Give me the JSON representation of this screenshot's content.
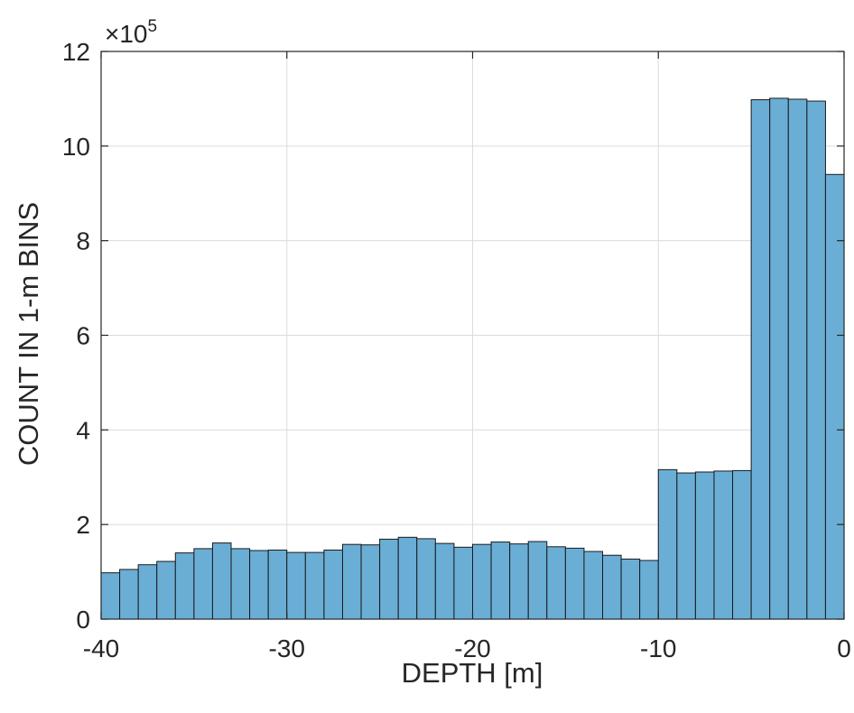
{
  "chart_data": {
    "type": "bar",
    "title": "",
    "xlabel": "DEPTH [m]",
    "ylabel": "COUNT IN 1-m BINS",
    "y_multiplier_label": "×10",
    "y_multiplier_exponent": "5",
    "xlim": [
      -40,
      0
    ],
    "ylim": [
      0,
      12
    ],
    "x_ticks": [
      -40,
      -30,
      -20,
      -10,
      0
    ],
    "y_ticks": [
      0,
      2,
      4,
      6,
      8,
      10,
      12
    ],
    "x_tick_labels": [
      "-40",
      "-30",
      "-20",
      "-10",
      "0"
    ],
    "y_tick_labels": [
      "0",
      "2",
      "4",
      "6",
      "8",
      "10",
      "12"
    ],
    "grid": true,
    "bar_color": "#6aaed6",
    "bar_edge_color": "#1a1a1a",
    "bins": [
      {
        "x0": -40,
        "x1": -39,
        "value": 0.98
      },
      {
        "x0": -39,
        "x1": -38,
        "value": 1.05
      },
      {
        "x0": -38,
        "x1": -37,
        "value": 1.15
      },
      {
        "x0": -37,
        "x1": -36,
        "value": 1.22
      },
      {
        "x0": -36,
        "x1": -35,
        "value": 1.4
      },
      {
        "x0": -35,
        "x1": -34,
        "value": 1.49
      },
      {
        "x0": -34,
        "x1": -33,
        "value": 1.61
      },
      {
        "x0": -33,
        "x1": -32,
        "value": 1.49
      },
      {
        "x0": -32,
        "x1": -31,
        "value": 1.45
      },
      {
        "x0": -31,
        "x1": -30,
        "value": 1.46
      },
      {
        "x0": -30,
        "x1": -29,
        "value": 1.41
      },
      {
        "x0": -29,
        "x1": -28,
        "value": 1.41
      },
      {
        "x0": -28,
        "x1": -27,
        "value": 1.46
      },
      {
        "x0": -27,
        "x1": -26,
        "value": 1.58
      },
      {
        "x0": -26,
        "x1": -25,
        "value": 1.57
      },
      {
        "x0": -25,
        "x1": -24,
        "value": 1.69
      },
      {
        "x0": -24,
        "x1": -23,
        "value": 1.73
      },
      {
        "x0": -23,
        "x1": -22,
        "value": 1.7
      },
      {
        "x0": -22,
        "x1": -21,
        "value": 1.6
      },
      {
        "x0": -21,
        "x1": -20,
        "value": 1.52
      },
      {
        "x0": -20,
        "x1": -19,
        "value": 1.58
      },
      {
        "x0": -19,
        "x1": -18,
        "value": 1.63
      },
      {
        "x0": -18,
        "x1": -17,
        "value": 1.59
      },
      {
        "x0": -17,
        "x1": -16,
        "value": 1.64
      },
      {
        "x0": -16,
        "x1": -15,
        "value": 1.53
      },
      {
        "x0": -15,
        "x1": -14,
        "value": 1.5
      },
      {
        "x0": -14,
        "x1": -13,
        "value": 1.43
      },
      {
        "x0": -13,
        "x1": -12,
        "value": 1.35
      },
      {
        "x0": -12,
        "x1": -11,
        "value": 1.27
      },
      {
        "x0": -11,
        "x1": -10,
        "value": 1.24
      },
      {
        "x0": -10,
        "x1": -9,
        "value": 3.16
      },
      {
        "x0": -9,
        "x1": -8,
        "value": 3.09
      },
      {
        "x0": -8,
        "x1": -7,
        "value": 3.11
      },
      {
        "x0": -7,
        "x1": -6,
        "value": 3.13
      },
      {
        "x0": -6,
        "x1": -5,
        "value": 3.14
      },
      {
        "x0": -5,
        "x1": -4,
        "value": 10.98
      },
      {
        "x0": -4,
        "x1": -3,
        "value": 11.01
      },
      {
        "x0": -3,
        "x1": -2,
        "value": 10.99
      },
      {
        "x0": -2,
        "x1": -1,
        "value": 10.95
      },
      {
        "x0": -1,
        "x1": 0,
        "value": 9.4
      }
    ]
  }
}
